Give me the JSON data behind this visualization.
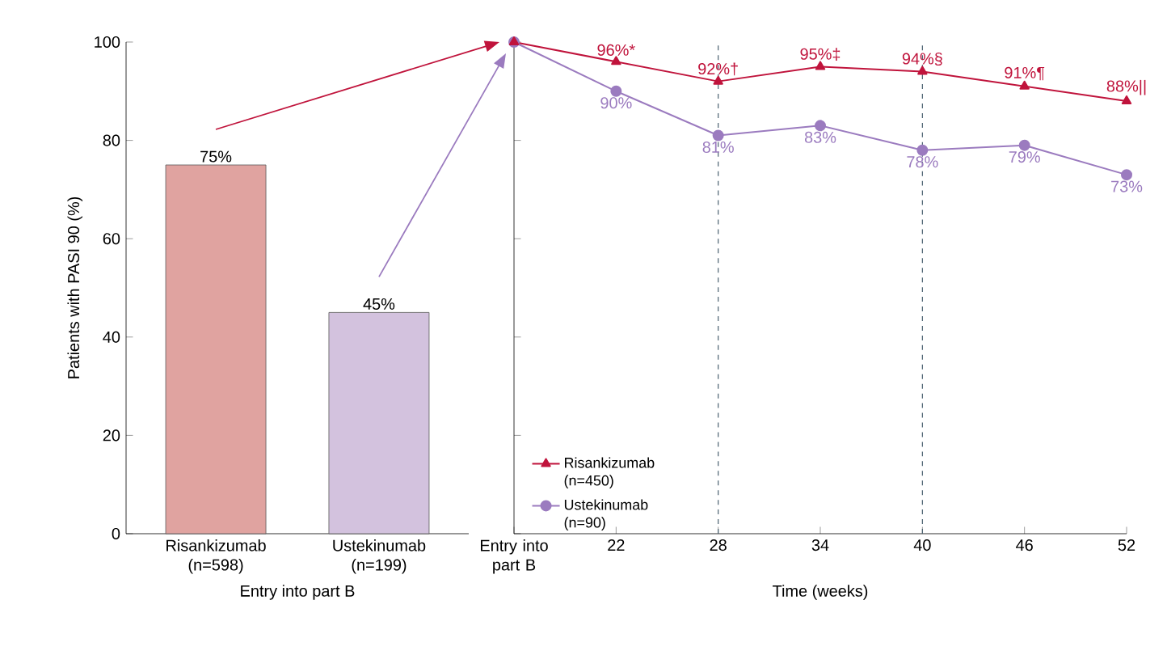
{
  "chart_data": [
    {
      "type": "bar",
      "categories": [
        "Risankizumab (n=598)",
        "Ustekinumab (n=199)"
      ],
      "values": [
        75,
        45
      ],
      "colors": [
        "#e0a3a0",
        "#d3c2de"
      ],
      "value_labels": [
        "75%",
        "45%"
      ],
      "xlabel": "Entry into part B",
      "ylabel": "Patients with PASI 90 (%)",
      "ylim": [
        0,
        100
      ],
      "yticks": [
        0,
        20,
        40,
        60,
        80,
        100
      ]
    },
    {
      "type": "line",
      "x": [
        16,
        22,
        28,
        34,
        40,
        46,
        52
      ],
      "xlim": [
        16,
        52
      ],
      "xticks": [
        {
          "value": 16,
          "label": "Entry into part B"
        },
        22,
        28,
        34,
        40,
        46,
        52
      ],
      "ylim": [
        0,
        100
      ],
      "yticks": [
        0,
        20,
        40,
        60,
        80,
        100
      ],
      "tick_labels": "x",
      "xlabel": "Time (weeks)",
      "legend": "bottom left",
      "series": [
        {
          "name": "Risankizumab (n=450)",
          "color": "#c0143c",
          "marker": "triangle",
          "values": [
            100,
            96,
            92,
            95,
            94,
            91,
            88
          ],
          "value_labels": [
            null,
            "96%*",
            "92%†",
            "95%‡",
            "94%§",
            "91%¶",
            "88%||"
          ]
        },
        {
          "name": "Ustekinumab (n=90)",
          "color": "#9b7bbf",
          "marker": "circle",
          "values": [
            100,
            90,
            81,
            83,
            78,
            79,
            73
          ],
          "value_labels": [
            null,
            "90%",
            "81%",
            "83%",
            "78%",
            "79%",
            "73%"
          ]
        }
      ],
      "ref_lines": [
        {
          "axis": "x",
          "value": 28,
          "color": "#4a6070",
          "line_style": "dashed"
        },
        {
          "axis": "x",
          "value": 40,
          "color": "#4a6070",
          "line_style": "dashed"
        }
      ]
    }
  ]
}
